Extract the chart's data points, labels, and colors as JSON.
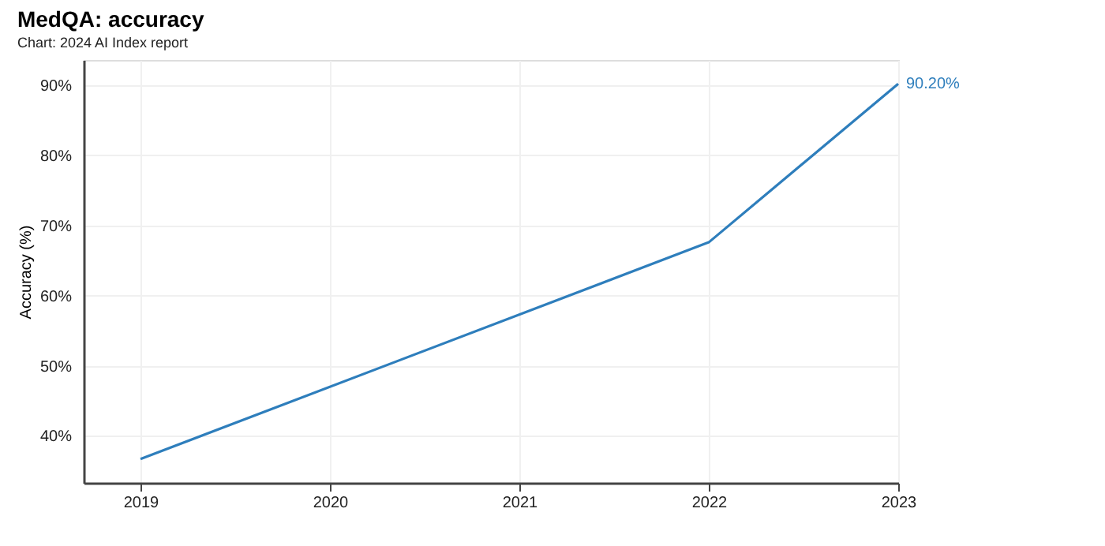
{
  "chart_data": {
    "type": "line",
    "title": "MedQA: accuracy",
    "subtitle": "Chart: 2024 AI Index report",
    "ylabel": "Accuracy (%)",
    "x": [
      2019,
      2022,
      2023
    ],
    "series": [
      {
        "color": "#2e7ebc",
        "values": [
          36.7,
          67.6,
          90.2
        ],
        "value_labels": [
          null,
          null,
          "90.20%"
        ]
      }
    ],
    "xlim": [
      2018.7,
      2023
    ],
    "xticks": [
      2019,
      2020,
      2021,
      2022,
      2023
    ],
    "ylim": [
      33.3,
      93.6
    ],
    "yticks": [
      {
        "value": 40,
        "label": "40%"
      },
      {
        "value": 50,
        "label": "50%"
      },
      {
        "value": 60,
        "label": "60%"
      },
      {
        "value": 70,
        "label": "70%"
      },
      {
        "value": 80,
        "label": "80%"
      },
      {
        "value": 90,
        "label": "90%"
      }
    ],
    "grid": true,
    "marker": "none",
    "line_style": "solid"
  }
}
